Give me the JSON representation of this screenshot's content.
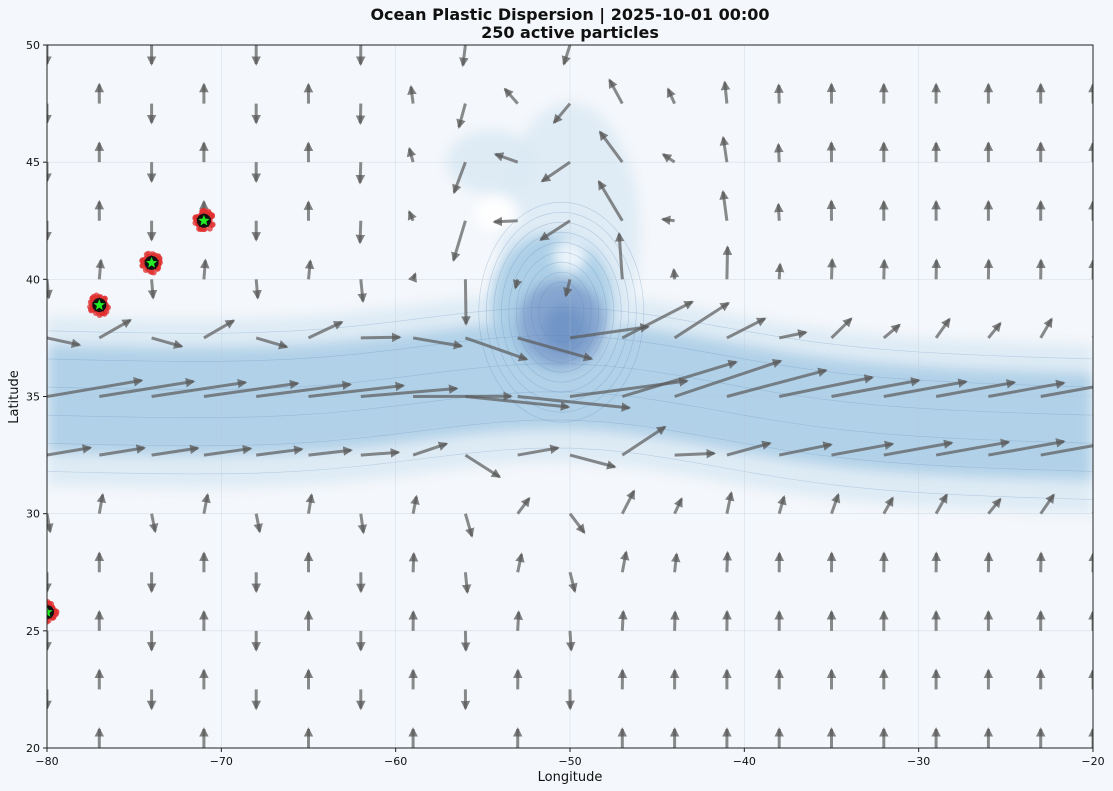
{
  "chart_data": {
    "type": "scatter",
    "title": "Ocean Plastic Dispersion | 2025-10-01 00:00",
    "subtitle": "250 active particles",
    "xlabel": "Longitude",
    "ylabel": "Latitude",
    "xlim": [
      -80,
      -20
    ],
    "ylim": [
      20,
      50
    ],
    "x_ticks": [
      -80,
      -70,
      -60,
      -50,
      -40,
      -30,
      -20
    ],
    "y_ticks": [
      20,
      25,
      30,
      35,
      40,
      45,
      50
    ],
    "x_tick_labels": [
      "−80",
      "−70",
      "−60",
      "−50",
      "−40",
      "−30",
      "−20"
    ],
    "y_tick_labels": [
      "20",
      "25",
      "30",
      "35",
      "40",
      "45",
      "50"
    ],
    "grid": true,
    "legend": "none",
    "colors": {
      "background": "#f4f7fb",
      "contour_light": "#dceaf4",
      "contour_mid": "#a9cde6",
      "contour_dark": "#6f93c4",
      "vector": "#5a5a5a",
      "particle": "#e03030",
      "source_marker": "#22ee22"
    },
    "particle_sources": [
      {
        "lon": -71.0,
        "lat": 42.5
      },
      {
        "lon": -74.0,
        "lat": 40.7
      },
      {
        "lon": -77.0,
        "lat": 38.9
      },
      {
        "lon": -80.0,
        "lat": 25.8
      }
    ],
    "particle_count": 250
  }
}
